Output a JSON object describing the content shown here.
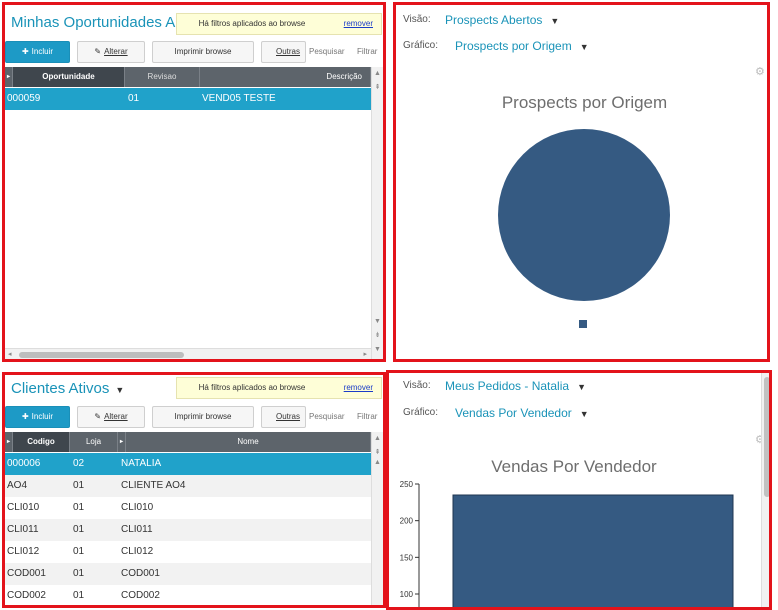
{
  "oportunidades": {
    "title": "Minhas Oportunidades Aber",
    "filter_text": "Há filtros aplicados ao browse",
    "remove_label": "remover",
    "buttons": {
      "incluir": "Incluir",
      "alterar": "Alterar",
      "imprimir": "Imprimir browse",
      "outras": "Outras",
      "pesquisar": "Pesquisar",
      "filtrar": "Filtrar"
    },
    "columns": [
      "Oportunidade",
      "Revisao",
      "Descrição"
    ],
    "rows": [
      [
        "000059",
        "01",
        "VEND05 TESTE"
      ]
    ]
  },
  "clientes": {
    "title": "Clientes Ativos",
    "filter_text": "Há filtros aplicados ao browse",
    "remove_label": "remover",
    "buttons": {
      "incluir": "Incluir",
      "alterar": "Alterar",
      "imprimir": "Imprimir browse",
      "outras": "Outras",
      "pesquisar": "Pesquisar",
      "filtrar": "Filtrar"
    },
    "columns": [
      "Codigo",
      "Loja",
      "Nome"
    ],
    "rows": [
      [
        "000006",
        "02",
        "NATALIA"
      ],
      [
        "AO4",
        "01",
        "CLIENTE AO4"
      ],
      [
        "CLI010",
        "01",
        "CLI010"
      ],
      [
        "CLI011",
        "01",
        "CLI011"
      ],
      [
        "CLI012",
        "01",
        "CLI012"
      ],
      [
        "COD001",
        "01",
        "COD001"
      ],
      [
        "COD002",
        "01",
        "COD002"
      ]
    ]
  },
  "prospects": {
    "visao_label": "Visão:",
    "visao_value": "Prospects Abertos",
    "grafico_label": "Gráfico:",
    "grafico_value": "Prospects por Origem",
    "chart_title": "Prospects por Origem"
  },
  "pedidos": {
    "visao_label": "Visão:",
    "visao_value": "Meus Pedidos - Natalia",
    "grafico_label": "Gráfico:",
    "grafico_value": "Vendas Por Vendedor",
    "chart_title": "Vendas Por Vendedor"
  },
  "colors": {
    "accent": "#1d9ac6",
    "selected_row": "#20a2ca",
    "chart_fill": "#355a82",
    "border_highlight": "#e3131b"
  },
  "chart_data": [
    {
      "type": "pie",
      "title": "Prospects por Origem",
      "categories": [
        ""
      ],
      "values": [
        1
      ]
    },
    {
      "type": "bar",
      "title": "Vendas Por Vendedor",
      "categories": [
        ""
      ],
      "values": [
        235
      ],
      "ylim": [
        0,
        250
      ],
      "yticks": [
        100,
        150,
        200,
        250
      ]
    }
  ]
}
